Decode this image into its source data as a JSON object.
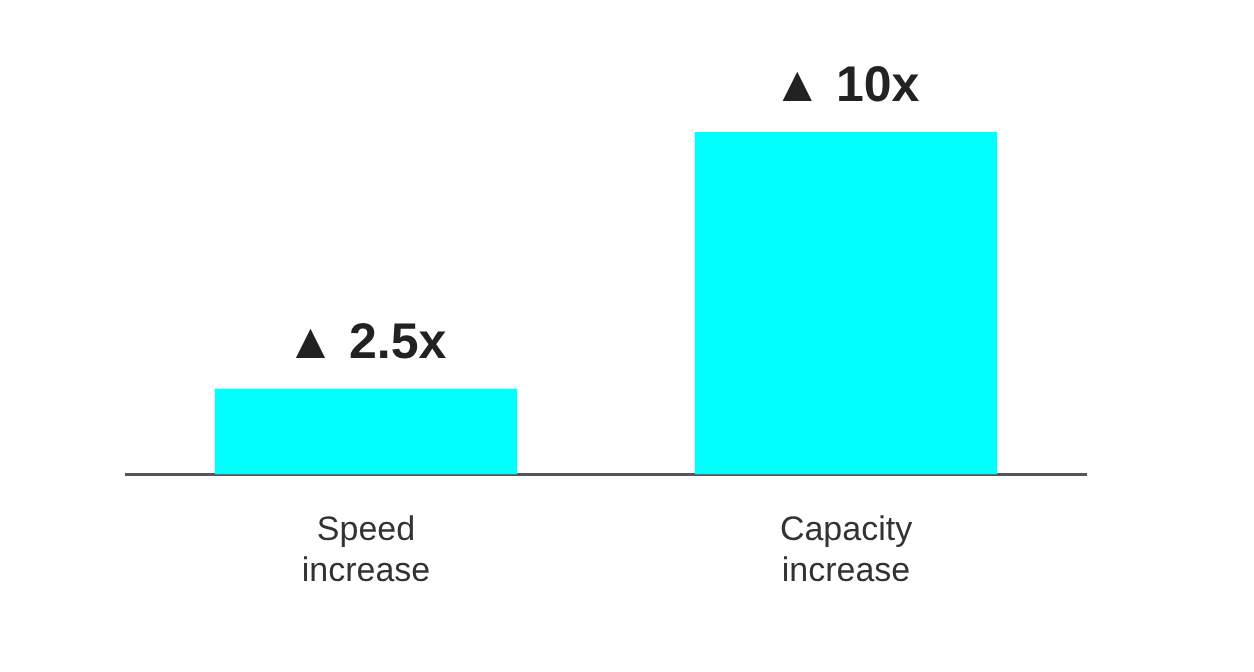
{
  "chart_data": {
    "type": "bar",
    "categories": [
      "Speed increase",
      "Capacity increase"
    ],
    "values": [
      2.5,
      10
    ],
    "color": "#00ffff",
    "value_labels": [
      "▲ 2.5x",
      "▲ 10x"
    ],
    "grid": false,
    "legend": false,
    "tick_labels": "x"
  }
}
